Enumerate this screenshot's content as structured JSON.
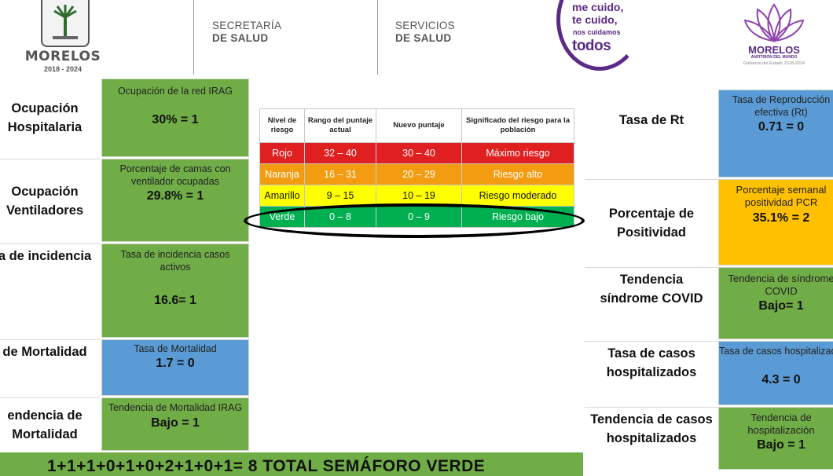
{
  "header": {
    "left_logo_title": "MORELOS",
    "left_logo_years": "2018 - 2024",
    "agency1_line1": "SECRETARÍA",
    "agency1_line2": "DE SALUD",
    "agency2_line1": "SERVICIOS",
    "agency2_line2": "DE SALUD",
    "slogan_line1": "me cuido,",
    "slogan_line2": "te cuido,",
    "slogan_line3": "nos cuidamos",
    "slogan_line4": "todos",
    "right_logo_title": "MORELOS",
    "right_logo_sub": "ANFITRIÓN DEL MUNDO",
    "right_logo_sub2": "Gobierno del Estado 2018-2024"
  },
  "left_indicators": [
    {
      "label_line1": "Ocupación",
      "label_line2": "Hospitalaria",
      "title": "Ocupación de la red IRAG",
      "value": "30% = 1",
      "color": "#70ad47"
    },
    {
      "label_line1": "Ocupación",
      "label_line2": "Ventiladores",
      "title": "Porcentaje de camas con ventilador ocupadas",
      "value": "29.8%   = 1",
      "color": "#70ad47"
    },
    {
      "label_line1": "a de incidencia",
      "label_line2": "",
      "title": "Tasa de incidencia casos activos",
      "value": "16.6=  1",
      "color": "#70ad47"
    },
    {
      "label_line1": " de Mortalidad",
      "label_line2": "",
      "title": "Tasa de Mortalidad",
      "value": "1.7 =  0",
      "color": "#5b9bd5"
    },
    {
      "label_line1": "endencia de",
      "label_line2": "Mortalidad",
      "title": "Tendencia de Mortalidad IRAG",
      "value": "Bajo = 1",
      "color": "#70ad47"
    }
  ],
  "right_indicators": [
    {
      "label_line1": "Tasa de Rt",
      "label_line2": "",
      "title": "Tasa de Reproducción efectiva (Rt)",
      "value": "0.71 =  0",
      "color": "#5b9bd5"
    },
    {
      "label_line1": "Porcentaje de",
      "label_line2": "Positividad",
      "title": "Porcentaje semanal positividad PCR",
      "value": "35.1% = 2",
      "color": "#ffc000"
    },
    {
      "label_line1": "Tendencia",
      "label_line2": "síndrome COVID",
      "title": "Tendencia de síndrome COVID",
      "value": "Bajo= 1",
      "color": "#70ad47"
    },
    {
      "label_line1": "Tasa de casos",
      "label_line2": "hospitalizados",
      "title": "Tasa de casos hospitalizados",
      "value": "4.3 =  0",
      "color": "#5b9bd5"
    },
    {
      "label_line1": "Tendencia de casos",
      "label_line2": "hospitalizados",
      "title": "Tendencia de hospitalización",
      "value": "Bajo = 1",
      "color": "#70ad47"
    }
  ],
  "risk_table": {
    "headers": [
      "Nivel de riesgo",
      "Rango del puntaje actual",
      "Nuevo puntaje",
      "Significado del riesgo para la población"
    ],
    "rows": [
      {
        "level": "Rojo",
        "range": "32 – 40",
        "new": "30 – 40",
        "meaning": "Máximo riesgo",
        "color": "#e02020",
        "text_color": "#ffffff"
      },
      {
        "level": "Naranja",
        "range": "16 – 31",
        "new": "20 – 29",
        "meaning": "Riesgo alto",
        "color": "#f39c12",
        "text_color": "#ffffff"
      },
      {
        "level": "Amarillo",
        "range": "9 – 15",
        "new": "10 – 19",
        "meaning": "Riesgo moderado",
        "color": "#ffff00",
        "text_color": "#111111"
      },
      {
        "level": "Verde",
        "range": "0 – 8",
        "new": "0 – 9",
        "meaning": "Riesgo bajo",
        "color": "#00b050",
        "text_color": "#ffffff"
      }
    ]
  },
  "bottom_total": "1+1+1+0+1+0+2+1+0+1= 8 TOTAL SEMÁFORO VERDE"
}
